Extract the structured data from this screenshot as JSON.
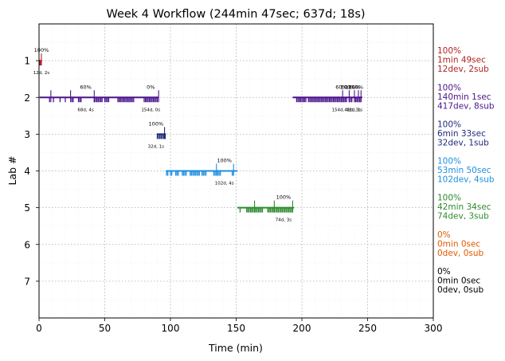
{
  "chart_data": {
    "type": "timeline",
    "title": "Week 4 Workflow (244min 47sec; 637d; 18s)",
    "xlabel": "Time (min)",
    "ylabel": "Lab #",
    "xlim": [
      0,
      300
    ],
    "ylim": [
      8,
      0
    ],
    "xticks": [
      0,
      50,
      100,
      150,
      200,
      250,
      300
    ],
    "yticks": [
      1,
      2,
      3,
      4,
      5,
      6,
      7
    ],
    "grid": true,
    "labs": [
      {
        "lab": 1,
        "color": "#b22222",
        "segments": [
          [
            0.3,
            2.2
          ]
        ],
        "ticks_down": [
          0.6,
          1.2
        ],
        "ticks_up": [
          1.8
        ],
        "annotations": [
          {
            "x": 1.8,
            "top": "100%",
            "bottom": "12d, 2s"
          }
        ],
        "summary": [
          "100%",
          "1min 49sec",
          "12dev, 2sub"
        ]
      },
      {
        "lab": 2,
        "color": "#4b148c",
        "segments": [
          [
            0.5,
            91
          ],
          [
            193,
            246
          ]
        ],
        "ticks_down": [
          8,
          11,
          16,
          20,
          25,
          26,
          30,
          31,
          32,
          42,
          43,
          44,
          45,
          46,
          47,
          48,
          50,
          51,
          52,
          53,
          60,
          61,
          62,
          63,
          64,
          65,
          66,
          67,
          68,
          69,
          70,
          71,
          72,
          80,
          81,
          82,
          83,
          84,
          85,
          86,
          87,
          88,
          89,
          90,
          196,
          197,
          198,
          199,
          200,
          201,
          202,
          203,
          205,
          206,
          207,
          208,
          209,
          210,
          211,
          212,
          213,
          214,
          215,
          216,
          217,
          218,
          219,
          220,
          221,
          222,
          223,
          224,
          225,
          226,
          227,
          228,
          229,
          230,
          231,
          232,
          233,
          234,
          236,
          237,
          238,
          240,
          241,
          242,
          243,
          244,
          245
        ],
        "ticks_up": [
          9,
          24,
          42,
          91,
          231,
          236,
          240,
          243,
          245
        ],
        "annotations": [
          {
            "x": 35.5,
            "top": "60%",
            "bottom": "68d, 4s"
          },
          {
            "x": 85,
            "top": "0%",
            "bottom": "154d, 0s"
          },
          {
            "x": 230,
            "top": "60%",
            "bottom": "154d, 4s"
          },
          {
            "x": 235,
            "top": "100%",
            "bottom": "",
            "bottom_prefix": ""
          },
          {
            "x": 238.5,
            "top": "100%",
            "bottom": "41d, 3s"
          },
          {
            "x": 241,
            "top": "100%",
            "bottom": "1d, 1s"
          }
        ],
        "summary": [
          "100%",
          "140min 1sec",
          "417dev, 8sub"
        ]
      },
      {
        "lab": 3,
        "color": "#1f2a7a",
        "segments": [
          [
            89.5,
            96.5
          ]
        ],
        "ticks_down": [
          90,
          91,
          92,
          93,
          94,
          95,
          96
        ],
        "ticks_up": [
          95.5
        ],
        "annotations": [
          {
            "x": 89,
            "top": "100%",
            "bottom": "32d, 1s"
          }
        ],
        "summary": [
          "100%",
          "6min 33sec",
          "32dev, 1sub"
        ]
      },
      {
        "lab": 4,
        "color": "#1e8fe0",
        "segments": [
          [
            96.5,
            151
          ]
        ],
        "ticks_down": [
          97,
          98,
          100,
          101,
          104,
          105,
          106,
          109,
          110,
          111,
          112,
          115,
          116,
          117,
          118,
          119,
          120,
          121,
          122,
          124,
          125,
          126,
          127,
          133,
          134,
          135,
          136,
          137,
          138,
          147,
          148
        ],
        "ticks_up": [
          135,
          148
        ],
        "annotations": [
          {
            "x": 141,
            "top": "100%",
            "bottom": "102d, 4s"
          }
        ],
        "summary": [
          "100%",
          "53min 50sec",
          "102dev, 4sub"
        ]
      },
      {
        "lab": 5,
        "color": "#2e8b2e",
        "segments": [
          [
            151,
            194
          ]
        ],
        "ticks_down": [
          153,
          158,
          159,
          160,
          161,
          162,
          163,
          164,
          165,
          166,
          167,
          168,
          169,
          170,
          174,
          175,
          176,
          177,
          178,
          179,
          180,
          181,
          182,
          183,
          184,
          185,
          186,
          187,
          188,
          189,
          190,
          191,
          192,
          193
        ],
        "ticks_up": [
          164,
          179,
          193
        ],
        "annotations": [
          {
            "x": 186,
            "top": "100%",
            "bottom": "74d, 3s"
          }
        ],
        "summary": [
          "100%",
          "42min 34sec",
          "74dev, 3sub"
        ]
      },
      {
        "lab": 6,
        "color": "#e05a00",
        "segments": [],
        "ticks_down": [],
        "ticks_up": [],
        "annotations": [],
        "summary": [
          "0%",
          "0min 0sec",
          "0dev, 0sub"
        ]
      },
      {
        "lab": 7,
        "color": "#000000",
        "segments": [],
        "ticks_down": [],
        "ticks_up": [],
        "annotations": [],
        "summary": [
          "0%",
          "0min 0sec",
          "0dev, 0sub"
        ]
      }
    ]
  }
}
